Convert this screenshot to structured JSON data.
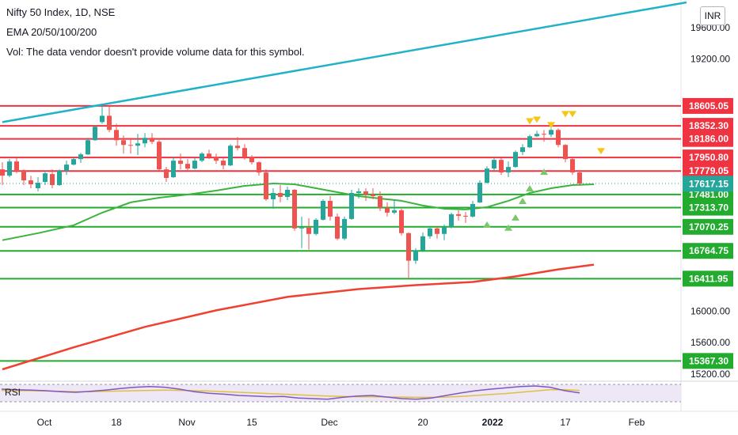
{
  "header": {
    "title": "Nifty 50 Index, 1D, NSE",
    "indicator": "EMA 20/50/100/200",
    "volume_note": "Vol: The data vendor doesn't provide volume data for this symbol."
  },
  "currency": "INR",
  "rsi_label": "RSI",
  "colors": {
    "resistance": "#ef3340",
    "support": "#22ab2e",
    "bullish_candle": "#26a69a",
    "bearish_candle": "#ef5350",
    "trendline": "#20b2c8",
    "ema_fast": "#3cb33c",
    "ema_slow": "#f04030",
    "price_badge": "#26a69a",
    "signal_down": "#f5c518",
    "signal_up": "#7bc86c"
  },
  "chart_data": {
    "type": "candlestick",
    "y_axis_labels": [
      "19600.00",
      "19200.00",
      "16000.00",
      "15600.00",
      "15200.00"
    ],
    "x_axis_labels": [
      "Oct",
      "18",
      "Nov",
      "15",
      "Dec",
      "20",
      "2022",
      "17",
      "Feb"
    ],
    "ylim": [
      15150,
      19950
    ],
    "current_price": "17617.15",
    "resistance_levels": [
      {
        "value": 18605.05,
        "label": "18605.05"
      },
      {
        "value": 18352.3,
        "label": "18352.30"
      },
      {
        "value": 18186.0,
        "label": "18186.00"
      },
      {
        "value": 17950.8,
        "label": "17950.80"
      },
      {
        "value": 17779.05,
        "label": "17779.05"
      }
    ],
    "support_levels": [
      {
        "value": 17481.0,
        "label": "17481.00"
      },
      {
        "value": 17313.7,
        "label": "17313.70"
      },
      {
        "value": 17070.25,
        "label": "17070.25"
      },
      {
        "value": 16764.75,
        "label": "16764.75"
      },
      {
        "value": 16411.95,
        "label": "16411.95"
      },
      {
        "value": 15367.3,
        "label": "15367.30"
      }
    ],
    "candles": [
      {
        "date": "Sep 27",
        "o": 17800,
        "h": 17890,
        "l": 17600,
        "c": 17720
      },
      {
        "date": "Sep 28",
        "o": 17720,
        "h": 17930,
        "l": 17700,
        "c": 17900
      },
      {
        "date": "Sep 29",
        "o": 17900,
        "h": 17940,
        "l": 17750,
        "c": 17790
      },
      {
        "date": "Sep 30",
        "o": 17790,
        "h": 17800,
        "l": 17600,
        "c": 17660
      },
      {
        "date": "Oct 01",
        "o": 17660,
        "h": 17720,
        "l": 17560,
        "c": 17610
      },
      {
        "date": "Oct 04",
        "o": 17560,
        "h": 17700,
        "l": 17520,
        "c": 17630
      },
      {
        "date": "Oct 05",
        "o": 17640,
        "h": 17780,
        "l": 17600,
        "c": 17750
      },
      {
        "date": "Oct 06",
        "o": 17740,
        "h": 17800,
        "l": 17560,
        "c": 17600
      },
      {
        "date": "Oct 07",
        "o": 17600,
        "h": 17800,
        "l": 17590,
        "c": 17780
      },
      {
        "date": "Oct 08",
        "o": 17780,
        "h": 17910,
        "l": 17730,
        "c": 17860
      },
      {
        "date": "Oct 11",
        "o": 17860,
        "h": 17950,
        "l": 17850,
        "c": 17930
      },
      {
        "date": "Oct 12",
        "o": 17930,
        "h": 18010,
        "l": 17880,
        "c": 17990
      },
      {
        "date": "Oct 13",
        "o": 17990,
        "h": 18200,
        "l": 17980,
        "c": 18170
      },
      {
        "date": "Oct 14",
        "o": 18170,
        "h": 18360,
        "l": 18160,
        "c": 18340
      },
      {
        "date": "Oct 18",
        "o": 18400,
        "h": 18620,
        "l": 18380,
        "c": 18480
      },
      {
        "date": "Oct 19",
        "o": 18480,
        "h": 18600,
        "l": 18270,
        "c": 18300
      },
      {
        "date": "Oct 20",
        "o": 18300,
        "h": 18380,
        "l": 18100,
        "c": 18170
      },
      {
        "date": "Oct 21",
        "o": 18170,
        "h": 18230,
        "l": 18000,
        "c": 18110
      },
      {
        "date": "Oct 22",
        "o": 18110,
        "h": 18200,
        "l": 18000,
        "c": 18100
      },
      {
        "date": "Oct 25",
        "o": 18100,
        "h": 18250,
        "l": 17980,
        "c": 18130
      },
      {
        "date": "Oct 26",
        "o": 18130,
        "h": 18260,
        "l": 18080,
        "c": 18200
      },
      {
        "date": "Oct 27",
        "o": 18200,
        "h": 18260,
        "l": 18120,
        "c": 18150
      },
      {
        "date": "Oct 28",
        "o": 18150,
        "h": 18170,
        "l": 17780,
        "c": 17800
      },
      {
        "date": "Oct 29",
        "o": 17800,
        "h": 17830,
        "l": 17640,
        "c": 17690
      },
      {
        "date": "Nov 01",
        "o": 17700,
        "h": 17950,
        "l": 17690,
        "c": 17910
      },
      {
        "date": "Nov 02",
        "o": 17910,
        "h": 18000,
        "l": 17800,
        "c": 17870
      },
      {
        "date": "Nov 03",
        "o": 17870,
        "h": 17930,
        "l": 17770,
        "c": 17810
      },
      {
        "date": "Nov 04",
        "o": 17810,
        "h": 17950,
        "l": 17800,
        "c": 17910
      },
      {
        "date": "Nov 08",
        "o": 17910,
        "h": 18020,
        "l": 17890,
        "c": 18000
      },
      {
        "date": "Nov 09",
        "o": 18000,
        "h": 18050,
        "l": 17930,
        "c": 17960
      },
      {
        "date": "Nov 10",
        "o": 17960,
        "h": 18000,
        "l": 17870,
        "c": 17910
      },
      {
        "date": "Nov 11",
        "o": 17910,
        "h": 17940,
        "l": 17800,
        "c": 17850
      },
      {
        "date": "Nov 12",
        "o": 17850,
        "h": 18120,
        "l": 17840,
        "c": 18100
      },
      {
        "date": "Nov 15",
        "o": 18100,
        "h": 18210,
        "l": 18040,
        "c": 18070
      },
      {
        "date": "Nov 16",
        "o": 18070,
        "h": 18120,
        "l": 17920,
        "c": 17960
      },
      {
        "date": "Nov 17",
        "o": 17960,
        "h": 17980,
        "l": 17860,
        "c": 17890
      },
      {
        "date": "Nov 18",
        "o": 17890,
        "h": 17900,
        "l": 17720,
        "c": 17760
      },
      {
        "date": "Nov 22",
        "o": 17760,
        "h": 17800,
        "l": 17400,
        "c": 17420
      },
      {
        "date": "Nov 23",
        "o": 17420,
        "h": 17560,
        "l": 17300,
        "c": 17500
      },
      {
        "date": "Nov 24",
        "o": 17500,
        "h": 17600,
        "l": 17380,
        "c": 17450
      },
      {
        "date": "Nov 25",
        "o": 17450,
        "h": 17580,
        "l": 17410,
        "c": 17540
      },
      {
        "date": "Nov 26",
        "o": 17540,
        "h": 17550,
        "l": 17020,
        "c": 17050
      },
      {
        "date": "Nov 29",
        "o": 17050,
        "h": 17200,
        "l": 16800,
        "c": 17060
      },
      {
        "date": "Nov 30",
        "o": 17060,
        "h": 17180,
        "l": 16780,
        "c": 16980
      },
      {
        "date": "Dec 01",
        "o": 16980,
        "h": 17180,
        "l": 16960,
        "c": 17160
      },
      {
        "date": "Dec 02",
        "o": 17160,
        "h": 17420,
        "l": 17150,
        "c": 17400
      },
      {
        "date": "Dec 03",
        "o": 17400,
        "h": 17460,
        "l": 17150,
        "c": 17200
      },
      {
        "date": "Dec 06",
        "o": 17200,
        "h": 17240,
        "l": 16900,
        "c": 16920
      },
      {
        "date": "Dec 07",
        "o": 16920,
        "h": 17200,
        "l": 16900,
        "c": 17170
      },
      {
        "date": "Dec 08",
        "o": 17170,
        "h": 17540,
        "l": 17160,
        "c": 17500
      },
      {
        "date": "Dec 09",
        "o": 17500,
        "h": 17560,
        "l": 17430,
        "c": 17520
      },
      {
        "date": "Dec 10",
        "o": 17520,
        "h": 17560,
        "l": 17400,
        "c": 17480
      },
      {
        "date": "Dec 13",
        "o": 17480,
        "h": 17560,
        "l": 17420,
        "c": 17460
      },
      {
        "date": "Dec 14",
        "o": 17460,
        "h": 17520,
        "l": 17270,
        "c": 17310
      },
      {
        "date": "Dec 15",
        "o": 17310,
        "h": 17380,
        "l": 17200,
        "c": 17250
      },
      {
        "date": "Dec 16",
        "o": 17250,
        "h": 17420,
        "l": 17230,
        "c": 17280
      },
      {
        "date": "Dec 17",
        "o": 17280,
        "h": 17300,
        "l": 16960,
        "c": 16990
      },
      {
        "date": "Dec 20",
        "o": 16990,
        "h": 17000,
        "l": 16410,
        "c": 16640
      },
      {
        "date": "Dec 21",
        "o": 16640,
        "h": 16800,
        "l": 16600,
        "c": 16770
      },
      {
        "date": "Dec 22",
        "o": 16770,
        "h": 17000,
        "l": 16750,
        "c": 16950
      },
      {
        "date": "Dec 23",
        "o": 16950,
        "h": 17080,
        "l": 16920,
        "c": 17050
      },
      {
        "date": "Dec 24",
        "o": 17050,
        "h": 17070,
        "l": 16920,
        "c": 16980
      },
      {
        "date": "Dec 27",
        "o": 16980,
        "h": 17100,
        "l": 16900,
        "c": 17070
      },
      {
        "date": "Dec 28",
        "o": 17070,
        "h": 17250,
        "l": 17050,
        "c": 17230
      },
      {
        "date": "Dec 29",
        "o": 17230,
        "h": 17280,
        "l": 17150,
        "c": 17210
      },
      {
        "date": "Dec 30",
        "o": 17210,
        "h": 17260,
        "l": 17120,
        "c": 17200
      },
      {
        "date": "Dec 31",
        "o": 17200,
        "h": 17400,
        "l": 17190,
        "c": 17360
      },
      {
        "date": "Jan 03",
        "o": 17380,
        "h": 17660,
        "l": 17370,
        "c": 17630
      },
      {
        "date": "Jan 04",
        "o": 17630,
        "h": 17840,
        "l": 17620,
        "c": 17810
      },
      {
        "date": "Jan 05",
        "o": 17810,
        "h": 17940,
        "l": 17780,
        "c": 17920
      },
      {
        "date": "Jan 06",
        "o": 17920,
        "h": 17940,
        "l": 17730,
        "c": 17760
      },
      {
        "date": "Jan 07",
        "o": 17760,
        "h": 17900,
        "l": 17700,
        "c": 17830
      },
      {
        "date": "Jan 10",
        "o": 17830,
        "h": 18040,
        "l": 17820,
        "c": 18020
      },
      {
        "date": "Jan 11",
        "o": 18020,
        "h": 18120,
        "l": 17980,
        "c": 18080
      },
      {
        "date": "Jan 12",
        "o": 18080,
        "h": 18240,
        "l": 18070,
        "c": 18220
      },
      {
        "date": "Jan 13",
        "o": 18220,
        "h": 18290,
        "l": 18210,
        "c": 18250
      },
      {
        "date": "Jan 14",
        "o": 18250,
        "h": 18300,
        "l": 18150,
        "c": 18240
      },
      {
        "date": "Jan 17",
        "o": 18240,
        "h": 18320,
        "l": 18210,
        "c": 18300
      },
      {
        "date": "Jan 18",
        "o": 18300,
        "h": 18320,
        "l": 18080,
        "c": 18110
      },
      {
        "date": "Jan 19",
        "o": 18110,
        "h": 18120,
        "l": 17890,
        "c": 17930
      },
      {
        "date": "Jan 20",
        "o": 17930,
        "h": 17950,
        "l": 17730,
        "c": 17760
      },
      {
        "date": "Jan 21",
        "o": 17760,
        "h": 17790,
        "l": 17590,
        "c": 17620
      }
    ],
    "ema_20": [
      [
        0,
        16900
      ],
      [
        5,
        16990
      ],
      [
        10,
        17090
      ],
      [
        14,
        17250
      ],
      [
        18,
        17380
      ],
      [
        22,
        17440
      ],
      [
        26,
        17480
      ],
      [
        30,
        17530
      ],
      [
        34,
        17590
      ],
      [
        38,
        17620
      ],
      [
        41,
        17610
      ],
      [
        44,
        17560
      ],
      [
        47,
        17510
      ],
      [
        50,
        17460
      ],
      [
        53,
        17430
      ],
      [
        56,
        17400
      ],
      [
        59,
        17340
      ],
      [
        62,
        17300
      ],
      [
        65,
        17290
      ],
      [
        68,
        17320
      ],
      [
        71,
        17400
      ],
      [
        74,
        17500
      ],
      [
        77,
        17560
      ],
      [
        80,
        17600
      ],
      [
        83,
        17610
      ]
    ],
    "ema_200": [
      [
        0,
        15260
      ],
      [
        10,
        15540
      ],
      [
        20,
        15800
      ],
      [
        30,
        16010
      ],
      [
        40,
        16180
      ],
      [
        50,
        16280
      ],
      [
        58,
        16330
      ],
      [
        66,
        16370
      ],
      [
        72,
        16440
      ],
      [
        78,
        16530
      ],
      [
        83,
        16590
      ]
    ],
    "trendline": [
      [
        0,
        18400
      ],
      [
        96,
        19920
      ]
    ],
    "rsi": [
      60,
      58,
      57,
      55,
      52,
      50,
      53,
      57,
      62,
      66,
      68,
      66,
      60,
      52,
      47,
      44,
      40,
      38,
      36,
      37,
      32,
      30,
      28,
      34,
      38,
      40,
      35,
      30,
      28,
      32,
      40,
      48,
      55,
      60,
      64,
      68,
      70,
      66,
      55,
      48
    ],
    "rsi_ema": [
      56,
      55,
      55,
      54,
      53,
      52,
      52,
      53,
      54,
      55,
      56,
      57,
      56,
      55,
      54,
      52,
      50,
      48,
      46,
      44,
      42,
      40,
      38,
      37,
      36,
      36,
      35,
      35,
      34,
      34,
      35,
      37,
      40,
      43,
      46,
      50,
      54,
      58,
      58,
      56
    ],
    "signals_down": [
      74,
      75,
      77,
      79,
      80,
      84
    ],
    "signals_up": [
      68,
      71,
      72,
      73,
      74,
      76
    ],
    "signals_down_price": [
      18410,
      18430,
      18360,
      18500,
      18500,
      18030
    ],
    "signals_up_price": [
      17100,
      17060,
      17190,
      17400,
      17560,
      17770
    ]
  }
}
